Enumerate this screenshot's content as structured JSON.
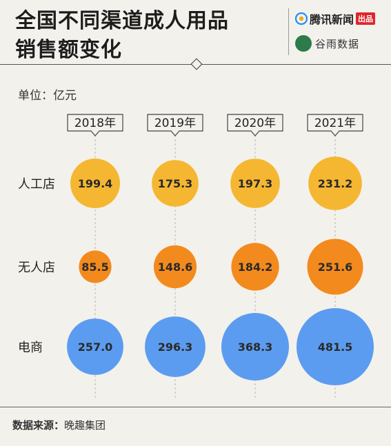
{
  "header": {
    "title_line1": "全国不同渠道成人用品",
    "title_line2": "销售额变化",
    "brand_tencent": "腾讯新闻",
    "brand_badge": "出品",
    "brand_guyu": "谷雨数据"
  },
  "unit_label": "单位：亿元",
  "footer": {
    "source_label": "数据来源：",
    "source_value": "晚趣集团"
  },
  "colors": {
    "人工店": "#f5b731",
    "无人店": "#f38a1d",
    "电商": "#5b9cf0"
  },
  "chart_data": {
    "type": "bubble",
    "categories": [
      "2018年",
      "2019年",
      "2020年",
      "2021年"
    ],
    "series": [
      {
        "name": "人工店",
        "values": [
          199.4,
          175.3,
          197.3,
          231.2
        ]
      },
      {
        "name": "无人店",
        "values": [
          85.5,
          148.6,
          184.2,
          251.6
        ]
      },
      {
        "name": "电商",
        "values": [
          257.0,
          296.3,
          368.3,
          481.5
        ]
      }
    ],
    "value_labels": [
      [
        "199.4",
        "175.3",
        "197.3",
        "231.2"
      ],
      [
        "85.5",
        "148.6",
        "184.2",
        "251.6"
      ],
      [
        "257.0",
        "296.3",
        "368.3",
        "481.5"
      ]
    ]
  }
}
